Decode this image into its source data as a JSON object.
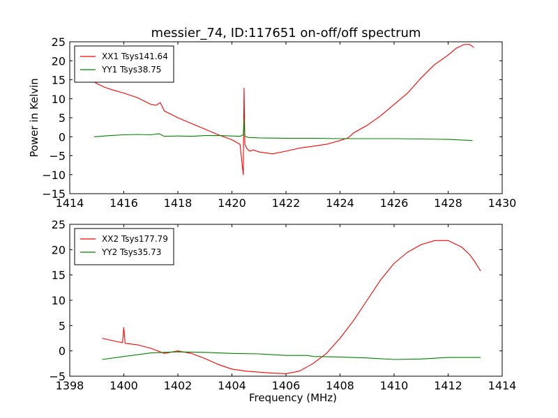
{
  "title": "messier_74, ID:117651 on-off/off spectrum",
  "chart_data": [
    {
      "type": "line",
      "title": "messier_74, ID:117651 on-off/off spectrum",
      "xlabel": "",
      "ylabel": "Power in Kelvin",
      "xlim": [
        1414,
        1430
      ],
      "ylim": [
        -15,
        25
      ],
      "xticks": [
        1414,
        1416,
        1418,
        1420,
        1422,
        1424,
        1426,
        1428,
        1430
      ],
      "yticks": [
        -15,
        -10,
        -5,
        0,
        5,
        10,
        15,
        20,
        25
      ],
      "xtick_labels": [
        "1414",
        "1416",
        "1418",
        "1420",
        "1422",
        "1424",
        "1426",
        "1428",
        "1430"
      ],
      "ytick_labels": [
        "−15",
        "−10",
        "−5",
        "0",
        "5",
        "10",
        "15",
        "20",
        "25"
      ],
      "grid": false,
      "legend_position": "top-left",
      "series": [
        {
          "name": "XX1 Tsys141.64",
          "color": "#ff0000",
          "x": [
            1414.9,
            1415.0,
            1415.3,
            1415.6,
            1416.0,
            1416.5,
            1417.0,
            1417.2,
            1417.35,
            1417.5,
            1418.0,
            1418.5,
            1419.0,
            1419.5,
            1420.0,
            1420.3,
            1420.42,
            1420.45,
            1420.48,
            1420.55,
            1420.65,
            1420.8,
            1421.0,
            1421.5,
            1422.0,
            1422.5,
            1423.0,
            1423.5,
            1424.0,
            1424.3,
            1424.5,
            1425.0,
            1425.5,
            1426.0,
            1426.5,
            1427.0,
            1427.5,
            1428.0,
            1428.3,
            1428.6,
            1428.8,
            1428.95
          ],
          "y": [
            14.5,
            14.0,
            13.0,
            12.3,
            11.5,
            10.3,
            8.5,
            8.3,
            9.0,
            6.8,
            5.0,
            3.5,
            2.0,
            0.5,
            -0.8,
            -2.0,
            -10.0,
            12.8,
            -2.0,
            -3.0,
            -3.8,
            -3.5,
            -4.0,
            -4.5,
            -3.8,
            -3.0,
            -2.5,
            -2.0,
            -1.0,
            -0.3,
            1.0,
            3.0,
            5.5,
            8.5,
            11.5,
            15.5,
            19.0,
            21.5,
            23.3,
            24.3,
            24.3,
            23.5
          ]
        },
        {
          "name": "YY1 Tsys38.75",
          "color": "#008000",
          "x": [
            1414.9,
            1415.5,
            1416.0,
            1416.5,
            1417.0,
            1417.3,
            1417.5,
            1418.0,
            1418.5,
            1419.0,
            1419.5,
            1420.0,
            1420.3,
            1420.42,
            1420.45,
            1420.48,
            1420.6,
            1421.0,
            1422.0,
            1423.0,
            1424.0,
            1425.0,
            1426.0,
            1427.0,
            1428.0,
            1428.9
          ],
          "y": [
            0.0,
            0.3,
            0.5,
            0.6,
            0.5,
            0.8,
            0.1,
            0.2,
            0.1,
            0.3,
            0.3,
            0.2,
            0.1,
            0.5,
            4.5,
            0.2,
            -0.2,
            -0.3,
            -0.4,
            -0.4,
            -0.5,
            -0.5,
            -0.5,
            -0.6,
            -0.7,
            -1.0
          ]
        }
      ]
    },
    {
      "type": "line",
      "title": "",
      "xlabel": "Frequency (MHz)",
      "ylabel": "",
      "xlim": [
        1398,
        1414
      ],
      "ylim": [
        -5,
        25
      ],
      "xticks": [
        1398,
        1400,
        1402,
        1404,
        1406,
        1408,
        1410,
        1412,
        1414
      ],
      "yticks": [
        -5,
        0,
        5,
        10,
        15,
        20,
        25
      ],
      "xtick_labels": [
        "1398",
        "1400",
        "1402",
        "1404",
        "1406",
        "1408",
        "1410",
        "1412",
        "1414"
      ],
      "ytick_labels": [
        "−5",
        "0",
        "5",
        "10",
        "15",
        "20",
        "25"
      ],
      "grid": false,
      "legend_position": "top-left",
      "series": [
        {
          "name": "XX2 Tsys177.79",
          "color": "#ff0000",
          "x": [
            1399.2,
            1399.6,
            1399.95,
            1400.0,
            1400.05,
            1400.5,
            1401.0,
            1401.5,
            1402.0,
            1402.5,
            1403.0,
            1403.5,
            1404.0,
            1404.5,
            1405.0,
            1405.5,
            1406.0,
            1406.5,
            1407.0,
            1407.5,
            1408.0,
            1408.5,
            1409.0,
            1409.5,
            1410.0,
            1410.5,
            1411.0,
            1411.5,
            1412.0,
            1412.5,
            1412.8,
            1413.0,
            1413.2
          ],
          "y": [
            2.5,
            2.0,
            1.6,
            4.6,
            1.5,
            1.2,
            0.5,
            -0.5,
            0.0,
            -0.5,
            -1.5,
            -2.7,
            -3.6,
            -4.0,
            -4.2,
            -4.4,
            -4.5,
            -4.0,
            -2.5,
            -0.5,
            2.5,
            6.0,
            10.0,
            14.0,
            17.3,
            19.5,
            21.0,
            21.8,
            21.8,
            20.5,
            19.0,
            17.5,
            15.8
          ]
        },
        {
          "name": "YY2 Tsys35.73",
          "color": "#008000",
          "x": [
            1399.2,
            1400.0,
            1401.0,
            1402.0,
            1403.0,
            1404.0,
            1405.0,
            1406.0,
            1406.8,
            1407.0,
            1408.0,
            1409.0,
            1410.0,
            1411.0,
            1412.0,
            1413.2
          ],
          "y": [
            -1.7,
            -1.1,
            -0.4,
            -0.2,
            -0.3,
            -0.5,
            -0.6,
            -0.9,
            -0.9,
            -1.1,
            -1.2,
            -1.4,
            -1.7,
            -1.6,
            -1.3,
            -1.3
          ]
        }
      ]
    }
  ]
}
